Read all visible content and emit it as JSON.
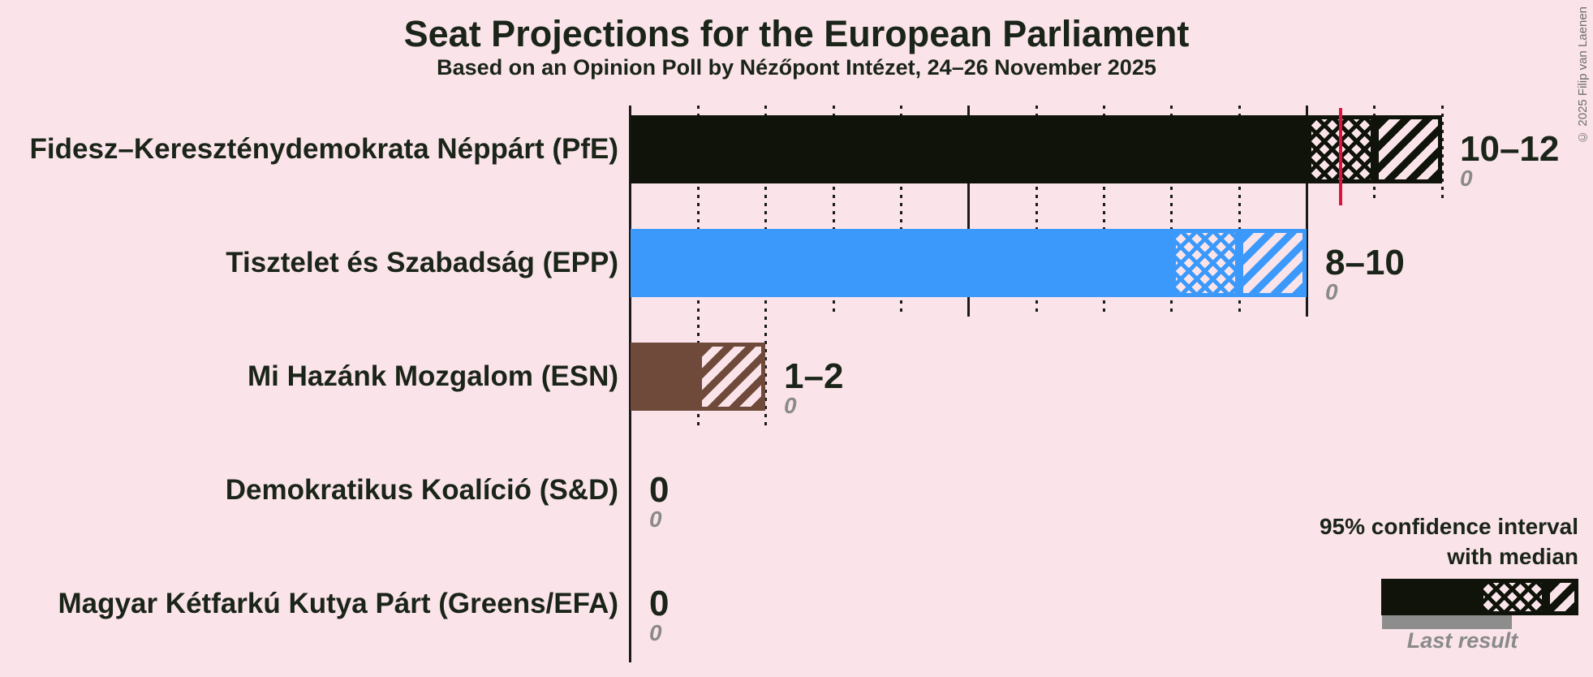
{
  "header": {
    "title": "Seat Projections for the European Parliament",
    "subtitle": "Based on an Opinion Poll by Nézőpont Intézet, 24–26 November 2025"
  },
  "chart_data": {
    "type": "bar",
    "title": "Seat Projections for the European Parliament",
    "subtitle": "Based on an Opinion Poll by Nézőpont Intézet, 24–26 November 2025",
    "x_axis": {
      "min": 0,
      "max": 12,
      "minor_step": 1,
      "major_step": 5,
      "gridlines": "dotted minor, solid major",
      "axis_labels_visible": false
    },
    "parties": [
      {
        "name": "Fidesz–Kereszténydemokrata Néppárt (PfE)",
        "ci_low": 10,
        "ci_mid": 11,
        "ci_high": 12,
        "median_line_at": 10.5,
        "value_label": "10–12",
        "last_result": "0",
        "color": "#0f130a"
      },
      {
        "name": "Tisztelet és Szabadság (EPP)",
        "ci_low": 8,
        "ci_mid": 9,
        "ci_high": 10,
        "median_line_at": null,
        "value_label": "8–10",
        "last_result": "0",
        "color": "#3b99fc"
      },
      {
        "name": "Mi Hazánk Mozgalom (ESN)",
        "ci_low": 1,
        "ci_mid": 1,
        "ci_high": 2,
        "median_line_at": null,
        "value_label": "1–2",
        "last_result": "0",
        "color": "#6f4a3a"
      },
      {
        "name": "Demokratikus Koalíció (S&D)",
        "ci_low": 0,
        "ci_mid": 0,
        "ci_high": 0,
        "median_line_at": null,
        "value_label": "0",
        "last_result": "0",
        "color": null
      },
      {
        "name": "Magyar Kétfarkú Kutya Párt (Greens/EFA)",
        "ci_low": 0,
        "ci_mid": 0,
        "ci_high": 0,
        "median_line_at": null,
        "value_label": "0",
        "last_result": "0",
        "color": null
      }
    ]
  },
  "legend": {
    "ci_line1": "95% confidence interval",
    "ci_line2": "with median",
    "last_result_label": "Last result"
  },
  "copyright": "© 2025 Filip van Laenen",
  "colors": {
    "background": "#fae4ea",
    "text": "#1b2418",
    "muted_text": "#8a8a8a",
    "median_line": "#dc143c",
    "last_result_bar": "#8d8d8d",
    "gridline": "#1a1a1a",
    "bar_black": "#0f130a",
    "bar_blue": "#3b99fc",
    "bar_brown": "#6f4a3a"
  }
}
